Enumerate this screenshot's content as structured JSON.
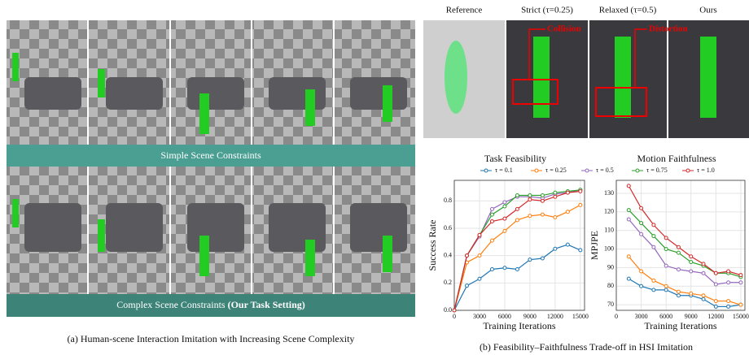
{
  "panel_a": {
    "band_simple": "Simple Scene Constraints",
    "band_complex": "Complex Scene Constraints",
    "band_complex_bold": "(Our Task Setting)",
    "caption": "(a) Human-scene Interaction Imitation with Increasing Scene Complexity"
  },
  "panel_b": {
    "columns": [
      "Reference",
      "Strict (τ=0.25)",
      "Relaxed (τ=0.5)",
      "Ours"
    ],
    "annotations": [
      "Collision",
      "Distortion"
    ],
    "caption": "(b) Feasibility–Faithfulness Trade-off in HSI Imitation"
  },
  "chart_data": [
    {
      "type": "line",
      "title": "Task Feasibility",
      "x_label": "Training Iterations",
      "y_label": "Success Rate",
      "xlim": [
        0,
        15500
      ],
      "xticks": [
        0,
        3000,
        6000,
        9000,
        12000,
        15000
      ],
      "ylim": [
        0,
        0.95
      ],
      "yticks": [
        {
          "value": 0,
          "label": "0.0"
        },
        0.2,
        0.4,
        0.6,
        0.8
      ],
      "grid": true,
      "x": [
        0,
        1500,
        3000,
        4500,
        6000,
        7500,
        9000,
        10500,
        12000,
        13500,
        15000
      ],
      "series": [
        {
          "name": "τ = 0.1",
          "color": "#1f77b4",
          "values": [
            0,
            0.18,
            0.23,
            0.3,
            0.31,
            0.3,
            0.37,
            0.38,
            0.45,
            0.48,
            0.44
          ]
        },
        {
          "name": "τ = 0.25",
          "color": "#ff7f0e",
          "values": [
            0,
            0.35,
            0.4,
            0.51,
            0.58,
            0.66,
            0.69,
            0.7,
            0.68,
            0.72,
            0.77
          ]
        },
        {
          "name": "τ = 0.5",
          "color": "#9467bd",
          "values": [
            0,
            0.4,
            0.54,
            0.74,
            0.79,
            0.83,
            0.83,
            0.82,
            0.85,
            0.86,
            0.88
          ]
        },
        {
          "name": "τ = 0.75",
          "color": "#2ca02c",
          "values": [
            0,
            0.4,
            0.55,
            0.7,
            0.76,
            0.84,
            0.84,
            0.84,
            0.86,
            0.87,
            0.88
          ]
        },
        {
          "name": "τ = 1.0",
          "color": "#d62728",
          "values": [
            0,
            0.4,
            0.55,
            0.65,
            0.67,
            0.74,
            0.81,
            0.8,
            0.83,
            0.86,
            0.87
          ]
        }
      ]
    },
    {
      "type": "line",
      "title": "Motion Faithfulness",
      "x_label": "Training Iterations",
      "y_label": "MPJPE",
      "xlim": [
        0,
        15500
      ],
      "xticks": [
        0,
        3000,
        6000,
        9000,
        12000,
        15000
      ],
      "ylim": [
        67,
        137
      ],
      "yticks": [
        70,
        80,
        90,
        100,
        110,
        120,
        130
      ],
      "grid": true,
      "x": [
        1500,
        3000,
        4500,
        6000,
        7500,
        9000,
        10500,
        12000,
        13500,
        15000
      ],
      "series": [
        {
          "name": "τ = 0.1",
          "color": "#1f77b4",
          "values": [
            84,
            80,
            78,
            78,
            75,
            75,
            73,
            69,
            69,
            70
          ]
        },
        {
          "name": "τ = 0.25",
          "color": "#ff7f0e",
          "values": [
            96,
            88,
            83,
            80,
            77,
            76,
            75,
            72,
            72,
            70
          ]
        },
        {
          "name": "τ = 0.5",
          "color": "#9467bd",
          "values": [
            116,
            108,
            101,
            91,
            89,
            88,
            87,
            81,
            82,
            82
          ]
        },
        {
          "name": "τ = 0.75",
          "color": "#2ca02c",
          "values": [
            121,
            114,
            107,
            100,
            98,
            93,
            91,
            87,
            87,
            85
          ]
        },
        {
          "name": "τ = 1.0",
          "color": "#d62728",
          "values": [
            134,
            122,
            113,
            106,
            101,
            96,
            92,
            87,
            88,
            86
          ]
        }
      ]
    }
  ]
}
